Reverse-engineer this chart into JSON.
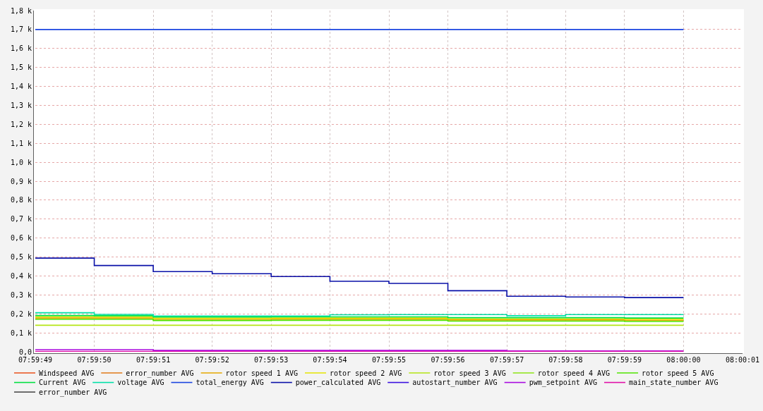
{
  "chart_data": {
    "type": "step",
    "x": [
      7.996944,
      7.997222,
      7.9975,
      7.997778,
      7.998056,
      7.998333,
      7.998611,
      7.998889,
      7.999167,
      7.999444,
      7.999722,
      8.0
    ],
    "xlim": [
      7.996944,
      8.000278
    ],
    "xticks": [
      {
        "value": 7.996944,
        "label": "07:59:49"
      },
      {
        "value": 7.997222,
        "label": "07:59:50"
      },
      {
        "value": 7.9975,
        "label": "07:59:51"
      },
      {
        "value": 7.997778,
        "label": "07:59:52"
      },
      {
        "value": 7.998056,
        "label": "07:59:53"
      },
      {
        "value": 7.998333,
        "label": "07:59:54"
      },
      {
        "value": 7.998611,
        "label": "07:59:55"
      },
      {
        "value": 7.998889,
        "label": "07:59:56"
      },
      {
        "value": 7.999167,
        "label": "07:59:57"
      },
      {
        "value": 7.999444,
        "label": "07:59:58"
      },
      {
        "value": 7.999722,
        "label": "07:59:59"
      },
      {
        "value": 8.0,
        "label": "08:00:00"
      },
      {
        "value": 8.000278,
        "label": "08:00:01"
      }
    ],
    "ylim": [
      0,
      1800
    ],
    "yticks": [
      {
        "value": 0,
        "label": "0,0"
      },
      {
        "value": 100,
        "label": "0,1 k"
      },
      {
        "value": 200,
        "label": "0,2 k"
      },
      {
        "value": 300,
        "label": "0,3 k"
      },
      {
        "value": 400,
        "label": "0,4 k"
      },
      {
        "value": 500,
        "label": "0,5 k"
      },
      {
        "value": 600,
        "label": "0,6 k"
      },
      {
        "value": 700,
        "label": "0,7 k"
      },
      {
        "value": 800,
        "label": "0,8 k"
      },
      {
        "value": 900,
        "label": "0,9 k"
      },
      {
        "value": 1000,
        "label": "1,0 k"
      },
      {
        "value": 1100,
        "label": "1,1 k"
      },
      {
        "value": 1200,
        "label": "1,2 k"
      },
      {
        "value": 1300,
        "label": "1,3 k"
      },
      {
        "value": 1400,
        "label": "1,4 k"
      },
      {
        "value": 1500,
        "label": "1,5 k"
      },
      {
        "value": 1600,
        "label": "1,6 k"
      },
      {
        "value": 1700,
        "label": "1,7 k"
      },
      {
        "value": 1800,
        "label": "1,8 k"
      }
    ],
    "grid": true,
    "legend": "bottom",
    "line_style": "solid",
    "series": [
      {
        "name": "Windspeed AVG",
        "color": "#ea4f1a",
        "values": [
          null,
          null,
          null,
          null,
          null,
          null,
          null,
          null,
          null,
          null,
          null,
          null
        ]
      },
      {
        "name": "error_number AVG",
        "color": "#e07a18",
        "values": [
          null,
          null,
          null,
          null,
          null,
          null,
          null,
          null,
          null,
          null,
          null,
          null
        ]
      },
      {
        "name": "rotor speed 1 AVG",
        "color": "#e5a800",
        "values": [
          178,
          178,
          171,
          171,
          172,
          172,
          172,
          168,
          168,
          168,
          166,
          166
        ]
      },
      {
        "name": "rotor speed 2 AVG",
        "color": "#e5e500",
        "values": [
          185,
          184,
          177,
          177,
          178,
          178,
          178,
          174,
          174,
          174,
          172,
          172
        ]
      },
      {
        "name": "rotor speed 3 AVG",
        "color": "#b5e514",
        "values": [
          140,
          140,
          140,
          140,
          140,
          140,
          140,
          140,
          140,
          140,
          140,
          140
        ]
      },
      {
        "name": "rotor speed 4 AVG",
        "color": "#8ce514",
        "values": [
          null,
          null,
          null,
          null,
          null,
          null,
          null,
          null,
          null,
          null,
          null,
          null
        ]
      },
      {
        "name": "rotor speed 5 AVG",
        "color": "#4fe500",
        "values": [
          171,
          171,
          165,
          165,
          166,
          166,
          166,
          162,
          162,
          162,
          160,
          160
        ]
      },
      {
        "name": "Current AVG",
        "color": "#00e040",
        "values": [
          191,
          190,
          183,
          183,
          184,
          184,
          184,
          180,
          180,
          180,
          178,
          178
        ]
      },
      {
        "name": "voltage AVG",
        "color": "#00e0a8",
        "values": [
          206,
          197,
          189,
          189,
          189,
          195,
          196,
          196,
          190,
          196,
          196,
          196
        ]
      },
      {
        "name": "total_energy AVG",
        "color": "#1a44e0",
        "values": [
          1700,
          1700,
          1700,
          1700,
          1700,
          1700,
          1700,
          1700,
          1700,
          1700,
          1700,
          1700
        ]
      },
      {
        "name": "power_calculated AVG",
        "color": "#0a10a8",
        "values": [
          494,
          455,
          423,
          412,
          397,
          372,
          361,
          322,
          293,
          289,
          286,
          286
        ]
      },
      {
        "name": "autostart_number AVG",
        "color": "#3a10e0",
        "values": [
          null,
          null,
          null,
          null,
          null,
          null,
          null,
          null,
          null,
          null,
          null,
          null
        ]
      },
      {
        "name": "pwm_setpoint AVG",
        "color": "#a80ae0",
        "values": [
          11,
          11,
          7,
          7,
          7,
          7,
          7,
          7,
          4,
          4,
          4,
          4
        ]
      },
      {
        "name": "main_state_number AVG",
        "color": "#e010a8",
        "values": [
          2,
          2,
          2,
          2,
          2,
          2,
          2,
          2,
          2,
          2,
          2,
          2
        ]
      },
      {
        "name": "error_number AVG",
        "color": "#5a5a5a",
        "values": [
          null,
          null,
          null,
          null,
          null,
          null,
          null,
          null,
          null,
          null,
          null,
          null
        ]
      }
    ]
  }
}
